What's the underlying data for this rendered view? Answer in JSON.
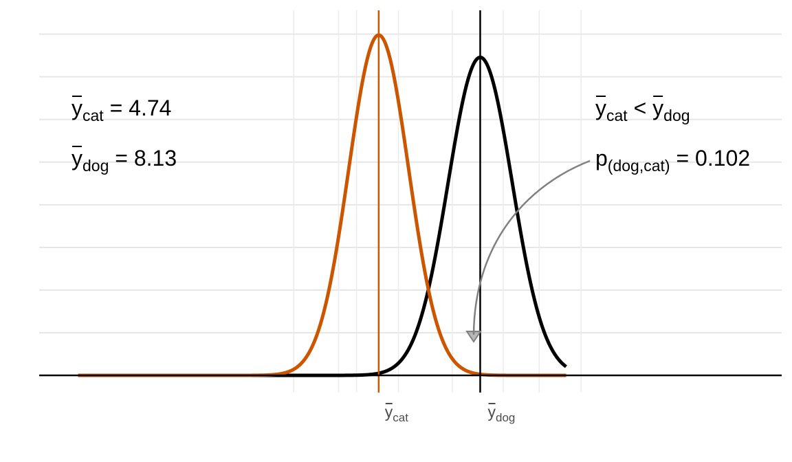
{
  "chart_data": {
    "type": "line",
    "x_range": [
      -6.6,
      18.2
    ],
    "y_range": [
      0,
      0.44
    ],
    "grid": true,
    "legend": "none",
    "colors": {
      "cat": "#cc5500",
      "dog": "#000000",
      "tail_fill": "#f2d0c0",
      "arrow": "#808080"
    },
    "series": [
      {
        "key": "cat",
        "mean": 4.74,
        "sd": 1.0,
        "x_end": 11.0
      },
      {
        "key": "dog",
        "mean": 8.13,
        "sd": 1.07,
        "x_end": 11.0
      }
    ],
    "mean_lines": [
      4.74,
      8.13
    ],
    "shaded_tail": {
      "series": "cat",
      "from": 8.13,
      "to": 11.0
    },
    "x_tick_labels": [
      {
        "base": "y",
        "sub": "cat",
        "at": 4.74
      },
      {
        "base": "y",
        "sub": "dog",
        "at": 8.13
      }
    ],
    "annotations": {
      "ycat": {
        "base": "y",
        "sub": "cat",
        "rest": " = 4.74"
      },
      "ydog": {
        "base": "y",
        "sub": "dog",
        "rest": " = 8.13"
      },
      "compare": {
        "base1": "y",
        "sub1": "cat",
        "op": " < ",
        "base2": "y",
        "sub2": "dog"
      },
      "pval": {
        "base": "p",
        "sub": "(dog,cat)",
        "rest": " = 0.102"
      }
    }
  }
}
